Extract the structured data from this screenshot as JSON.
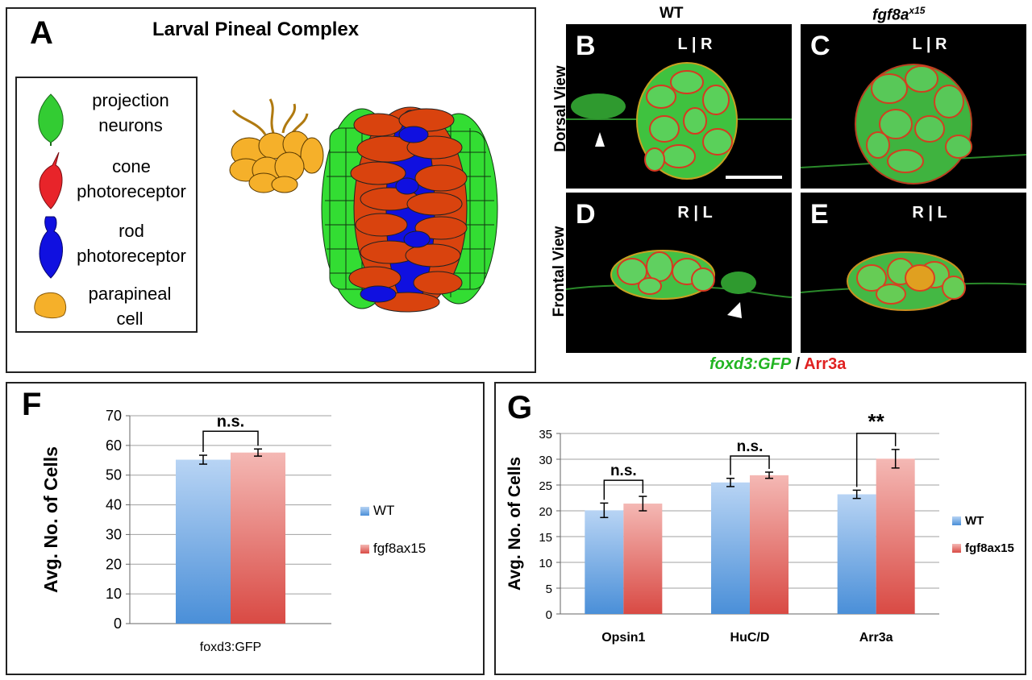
{
  "panel_a": {
    "letter": "A",
    "title": "Larval Pineal Complex",
    "legend": [
      {
        "line1": "projection",
        "line2": "neurons",
        "color": "#33cc33",
        "icon": "projection-neuron-icon"
      },
      {
        "line1": "cone",
        "line2": "photoreceptor",
        "color": "#e8242a",
        "icon": "cone-photoreceptor-icon"
      },
      {
        "line1": "rod",
        "line2": "photoreceptor",
        "color": "#1010e0",
        "icon": "rod-photoreceptor-icon"
      },
      {
        "line1": "parapineal",
        "line2": "cell",
        "color": "#f5b02a",
        "icon": "parapineal-cell-icon"
      }
    ]
  },
  "micrographs": {
    "col_wt": "WT",
    "col_mut_main": "fgf8a",
    "col_mut_sup": "x15",
    "row_dorsal": "Dorsal View",
    "row_frontal": "Frontal View",
    "panels": [
      {
        "letter": "B",
        "orientation": "L | R"
      },
      {
        "letter": "C",
        "orientation": "L | R"
      },
      {
        "letter": "D",
        "orientation": "R | L"
      },
      {
        "letter": "E",
        "orientation": "R | L"
      }
    ],
    "caption_green": "foxd3:GFP",
    "caption_sep": " / ",
    "caption_red": "Arr3a"
  },
  "chart_data": [
    {
      "panel": "F",
      "type": "bar",
      "ylabel": "Avg. No. of Cells",
      "ylim": [
        0,
        70
      ],
      "yticks": [
        0,
        10,
        20,
        30,
        40,
        50,
        60,
        70
      ],
      "categories": [
        "foxd3:GFP"
      ],
      "series": [
        {
          "name": "WT",
          "values": [
            55.2
          ],
          "errors": [
            1.5
          ],
          "color": "#4a90d9"
        },
        {
          "name": "fgf8ax15",
          "values": [
            57.6
          ],
          "errors": [
            1.2
          ],
          "color": "#e0605a"
        }
      ],
      "significance": [
        "n.s."
      ],
      "grid": true,
      "legend": "right"
    },
    {
      "panel": "G",
      "type": "bar",
      "ylabel": "Avg. No. of Cells",
      "ylim": [
        0,
        35
      ],
      "yticks": [
        0,
        5,
        10,
        15,
        20,
        25,
        30,
        35
      ],
      "categories": [
        "Opsin1",
        "HuC/D",
        "Arr3a"
      ],
      "series": [
        {
          "name": "WT",
          "values": [
            20.1,
            25.5,
            23.2
          ],
          "errors": [
            1.4,
            0.8,
            0.8
          ],
          "color": "#4a90d9"
        },
        {
          "name": "fgf8ax15",
          "values": [
            21.4,
            26.9,
            30.1
          ],
          "errors": [
            1.4,
            0.6,
            1.8
          ],
          "color": "#e0605a"
        }
      ],
      "significance": [
        "n.s.",
        "n.s.",
        "**"
      ],
      "grid": true,
      "legend": "right"
    }
  ]
}
